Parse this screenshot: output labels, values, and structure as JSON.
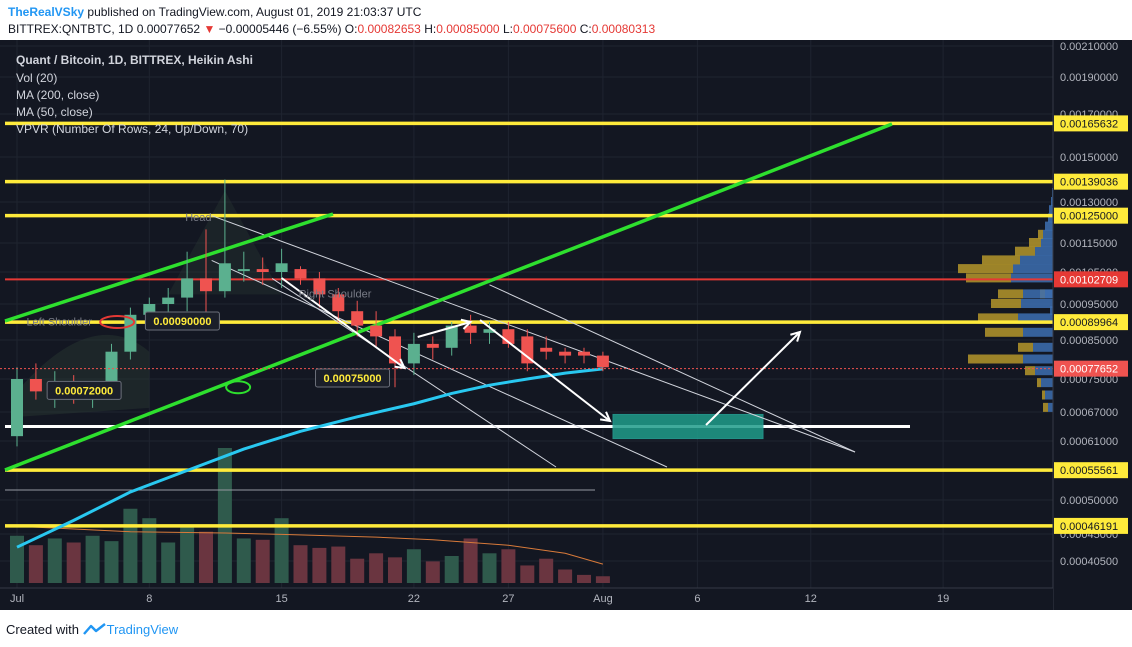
{
  "header": {
    "author": "TheRealVSky",
    "published_text": "published on TradingView.com, August 01, 2019 21:03:37 UTC",
    "symbol_line_prefix": "BITTREX:QNTBTC, 1D",
    "close_value": "0.00077652",
    "down_marker": "▼",
    "change": "−0.00005446 (−6.55%)",
    "ohlc": [
      {
        "label": "O:",
        "value": "0.00082653"
      },
      {
        "label": "H:",
        "value": "0.00085000"
      },
      {
        "label": "L:",
        "value": "0.00075600"
      },
      {
        "label": "C:",
        "value": "0.00080313"
      }
    ]
  },
  "legend": {
    "title": "Quant / Bitcoin, 1D, BITTREX, Heikin Ashi",
    "vol": "Vol (20)",
    "ma200": "MA (200, close)",
    "ma50": "MA (50, close)",
    "vpvr": "VPVR (Number Of Rows, 24, Up/Down, 70)"
  },
  "footer": {
    "created_with": "Created with",
    "brand": "TradingView"
  },
  "colors": {
    "background": "#131722",
    "up_candle": "#5bb08f",
    "down_candle": "#ef5350",
    "support_resistance": "#ffeb3b",
    "trend_channel": "#2ee02e",
    "ma": "#29c8f0",
    "current_price": "#ef5350",
    "target_box": "#1f9c8a"
  },
  "chart_data": {
    "type": "candlestick",
    "symbol": "BITTREX:QNTBTC",
    "interval": "1D",
    "ylim": [
      0.0004,
      0.0021
    ],
    "x_tick_labels": [
      {
        "label": "Jul",
        "day": 0
      },
      {
        "label": "8",
        "day": 7
      },
      {
        "label": "15",
        "day": 14
      },
      {
        "label": "22",
        "day": 21
      },
      {
        "label": "27",
        "day": 26
      },
      {
        "label": "Aug",
        "day": 31
      },
      {
        "label": "6",
        "day": 36
      },
      {
        "label": "12",
        "day": 42
      },
      {
        "label": "19",
        "day": 49
      }
    ],
    "y_tick_labels": [
      "0.00210000",
      "0.00190000",
      "0.00170000",
      "0.00150000",
      "0.00130000",
      "0.00115000",
      "0.00105000",
      "0.00095000",
      "0.00085000",
      "0.00075000",
      "0.00067000",
      "0.00061000",
      "0.00050000",
      "0.00045000",
      "0.00040500"
    ],
    "y_tick_values": [
      0.0021,
      0.0019,
      0.0017,
      0.0015,
      0.0013,
      0.00115,
      0.00105,
      0.00095,
      0.00085,
      0.00075,
      0.00067,
      0.00061,
      0.0005,
      0.00045,
      0.000405
    ],
    "horizontal_levels": [
      {
        "value": 0.00165632,
        "label": "0.00165632",
        "kind": "resistance"
      },
      {
        "value": 0.00139036,
        "label": "0.00139036",
        "kind": "resistance"
      },
      {
        "value": 0.00125,
        "label": "0.00125000",
        "kind": "resistance"
      },
      {
        "value": 0.00102709,
        "label": "0.00102709",
        "kind": "red"
      },
      {
        "value": 0.00089964,
        "label": "0.00089964",
        "kind": "resistance"
      },
      {
        "value": 0.00055561,
        "label": "0.00055561",
        "kind": "support"
      },
      {
        "value": 0.00046191,
        "label": "0.00046191",
        "kind": "support"
      }
    ],
    "white_level": 0.00064,
    "current_price": {
      "value": 0.00077652,
      "label": "0.00077652"
    },
    "price_tags": [
      {
        "label": "0.00090000",
        "day": 6.9,
        "price": 0.0009
      },
      {
        "label": "0.00075000",
        "day": 15.9,
        "price": 0.00075
      },
      {
        "label": "0.00072000",
        "day": 1.7,
        "price": 0.00072
      }
    ],
    "pattern_labels": [
      {
        "text": "Head",
        "day": 8.9,
        "price": 0.00123
      },
      {
        "text": "Left Shoulder",
        "day": 0.5,
        "price": 0.00089
      },
      {
        "text": "Right Shoulder",
        "day": 14.9,
        "price": 0.00097
      }
    ],
    "candles": [
      {
        "day": 0,
        "o": 0.00062,
        "h": 0.00078,
        "l": 0.0006,
        "c": 0.00075
      },
      {
        "day": 1,
        "o": 0.00075,
        "h": 0.00079,
        "l": 0.0007,
        "c": 0.00072
      },
      {
        "day": 2,
        "o": 0.00072,
        "h": 0.00077,
        "l": 0.00068,
        "c": 0.00073
      },
      {
        "day": 3,
        "o": 0.00073,
        "h": 0.00076,
        "l": 0.00069,
        "c": 0.00071
      },
      {
        "day": 4,
        "o": 0.00071,
        "h": 0.00073,
        "l": 0.00068,
        "c": 0.00072
      },
      {
        "day": 5,
        "o": 0.00072,
        "h": 0.00084,
        "l": 0.0007,
        "c": 0.00082
      },
      {
        "day": 6,
        "o": 0.00082,
        "h": 0.00094,
        "l": 0.0008,
        "c": 0.00092
      },
      {
        "day": 7,
        "o": 0.00092,
        "h": 0.00097,
        "l": 0.00088,
        "c": 0.00095
      },
      {
        "day": 8,
        "o": 0.00095,
        "h": 0.001,
        "l": 0.00091,
        "c": 0.00097
      },
      {
        "day": 9,
        "o": 0.00097,
        "h": 0.00112,
        "l": 0.00093,
        "c": 0.00103
      },
      {
        "day": 10,
        "o": 0.00103,
        "h": 0.0012,
        "l": 0.00088,
        "c": 0.00099
      },
      {
        "day": 11,
        "o": 0.00099,
        "h": 0.0014,
        "l": 0.00097,
        "c": 0.00108
      },
      {
        "day": 12,
        "o": 0.00106,
        "h": 0.00112,
        "l": 0.00102,
        "c": 0.00106
      },
      {
        "day": 13,
        "o": 0.00106,
        "h": 0.0011,
        "l": 0.00101,
        "c": 0.00105
      },
      {
        "day": 14,
        "o": 0.00105,
        "h": 0.00113,
        "l": 0.001,
        "c": 0.00108
      },
      {
        "day": 15,
        "o": 0.00106,
        "h": 0.00107,
        "l": 0.00101,
        "c": 0.00103
      },
      {
        "day": 16,
        "o": 0.00103,
        "h": 0.00105,
        "l": 0.00094,
        "c": 0.00098
      },
      {
        "day": 17,
        "o": 0.00098,
        "h": 0.001,
        "l": 0.0009,
        "c": 0.00093
      },
      {
        "day": 18,
        "o": 0.00093,
        "h": 0.00096,
        "l": 0.00086,
        "c": 0.00089
      },
      {
        "day": 19,
        "o": 0.00089,
        "h": 0.00093,
        "l": 0.00083,
        "c": 0.00086
      },
      {
        "day": 20,
        "o": 0.00086,
        "h": 0.00088,
        "l": 0.00073,
        "c": 0.00079
      },
      {
        "day": 21,
        "o": 0.00079,
        "h": 0.00087,
        "l": 0.00076,
        "c": 0.00084
      },
      {
        "day": 22,
        "o": 0.00084,
        "h": 0.00086,
        "l": 0.0008,
        "c": 0.00083
      },
      {
        "day": 23,
        "o": 0.00083,
        "h": 0.0009,
        "l": 0.00081,
        "c": 0.00089
      },
      {
        "day": 24,
        "o": 0.00089,
        "h": 0.00092,
        "l": 0.00084,
        "c": 0.00087
      },
      {
        "day": 25,
        "o": 0.00087,
        "h": 0.0009,
        "l": 0.00084,
        "c": 0.00088
      },
      {
        "day": 26,
        "o": 0.00088,
        "h": 0.0009,
        "l": 0.00083,
        "c": 0.00084
      },
      {
        "day": 27,
        "o": 0.00086,
        "h": 0.00088,
        "l": 0.00077,
        "c": 0.00079
      },
      {
        "day": 28,
        "o": 0.00083,
        "h": 0.00086,
        "l": 0.0008,
        "c": 0.00082
      },
      {
        "day": 29,
        "o": 0.00082,
        "h": 0.00083,
        "l": 0.00079,
        "c": 0.00081
      },
      {
        "day": 30,
        "o": 0.00082,
        "h": 0.00083,
        "l": 0.00079,
        "c": 0.00081
      },
      {
        "day": 31,
        "o": 0.00081,
        "h": 0.00082,
        "l": 0.00077,
        "c": 0.00078
      }
    ],
    "volume_ratio": [
      0.35,
      0.28,
      0.33,
      0.3,
      0.35,
      0.31,
      0.55,
      0.48,
      0.3,
      0.42,
      0.38,
      1.0,
      0.33,
      0.32,
      0.48,
      0.28,
      0.26,
      0.27,
      0.18,
      0.22,
      0.19,
      0.25,
      0.16,
      0.2,
      0.33,
      0.22,
      0.25,
      0.13,
      0.18,
      0.1,
      0.06,
      0.05
    ],
    "volume_ma_points": [
      [
        0,
        0.42
      ],
      [
        6,
        0.38
      ],
      [
        11,
        0.37
      ],
      [
        14,
        0.36
      ],
      [
        19,
        0.34
      ],
      [
        22,
        0.32
      ],
      [
        26,
        0.28
      ],
      [
        29,
        0.22
      ],
      [
        31,
        0.14
      ]
    ],
    "ma50_points": [
      [
        0,
        0.000428
      ],
      [
        3,
        0.00047
      ],
      [
        6,
        0.000515
      ],
      [
        9,
        0.000555
      ],
      [
        12,
        0.000595
      ],
      [
        15,
        0.00063
      ],
      [
        18,
        0.00066
      ],
      [
        21,
        0.00069
      ],
      [
        23,
        0.000715
      ],
      [
        25,
        0.000735
      ],
      [
        27,
        0.00075
      ],
      [
        29,
        0.000765
      ],
      [
        31,
        0.000776
      ]
    ],
    "volume_profile": [
      {
        "price": 0.00093,
        "up": 0.0,
        "down": 0.03
      },
      {
        "price": 0.00098,
        "up": 0.05,
        "down": 0.08
      },
      {
        "price": 0.00103,
        "up": 0.45,
        "down": 0.42
      },
      {
        "price": 0.00106,
        "up": 0.55,
        "down": 0.4
      },
      {
        "price": 0.00109,
        "up": 0.38,
        "down": 0.33
      },
      {
        "price": 0.00112,
        "up": 0.2,
        "down": 0.18
      },
      {
        "price": 0.00115,
        "up": 0.12,
        "down": 0.12
      },
      {
        "price": 0.00098,
        "up": 0.25,
        "down": 0.3
      },
      {
        "price": 0.00095,
        "up": 0.3,
        "down": 0.32
      },
      {
        "price": 0.00091,
        "up": 0.4,
        "down": 0.35
      },
      {
        "price": 0.00087,
        "up": 0.38,
        "down": 0.3
      },
      {
        "price": 0.00083,
        "up": 0.15,
        "down": 0.2
      },
      {
        "price": 0.0008,
        "up": 0.55,
        "down": 0.3
      },
      {
        "price": 0.00077,
        "up": 0.1,
        "down": 0.18
      },
      {
        "price": 0.00074,
        "up": 0.04,
        "down": 0.12
      },
      {
        "price": 0.00071,
        "up": 0.03,
        "down": 0.08
      },
      {
        "price": 0.00068,
        "up": 0.05,
        "down": 0.05
      },
      {
        "price": 0.00118,
        "up": 0.05,
        "down": 0.1
      },
      {
        "price": 0.00121,
        "up": 0.0,
        "down": 0.08
      },
      {
        "price": 0.00124,
        "up": 0.0,
        "down": 0.05
      },
      {
        "price": 0.00127,
        "up": 0.0,
        "down": 0.04
      },
      {
        "price": 0.0013,
        "up": 0.0,
        "down": 0.02
      },
      {
        "price": 0.00134,
        "up": 0.0,
        "down": 0.01
      }
    ]
  }
}
